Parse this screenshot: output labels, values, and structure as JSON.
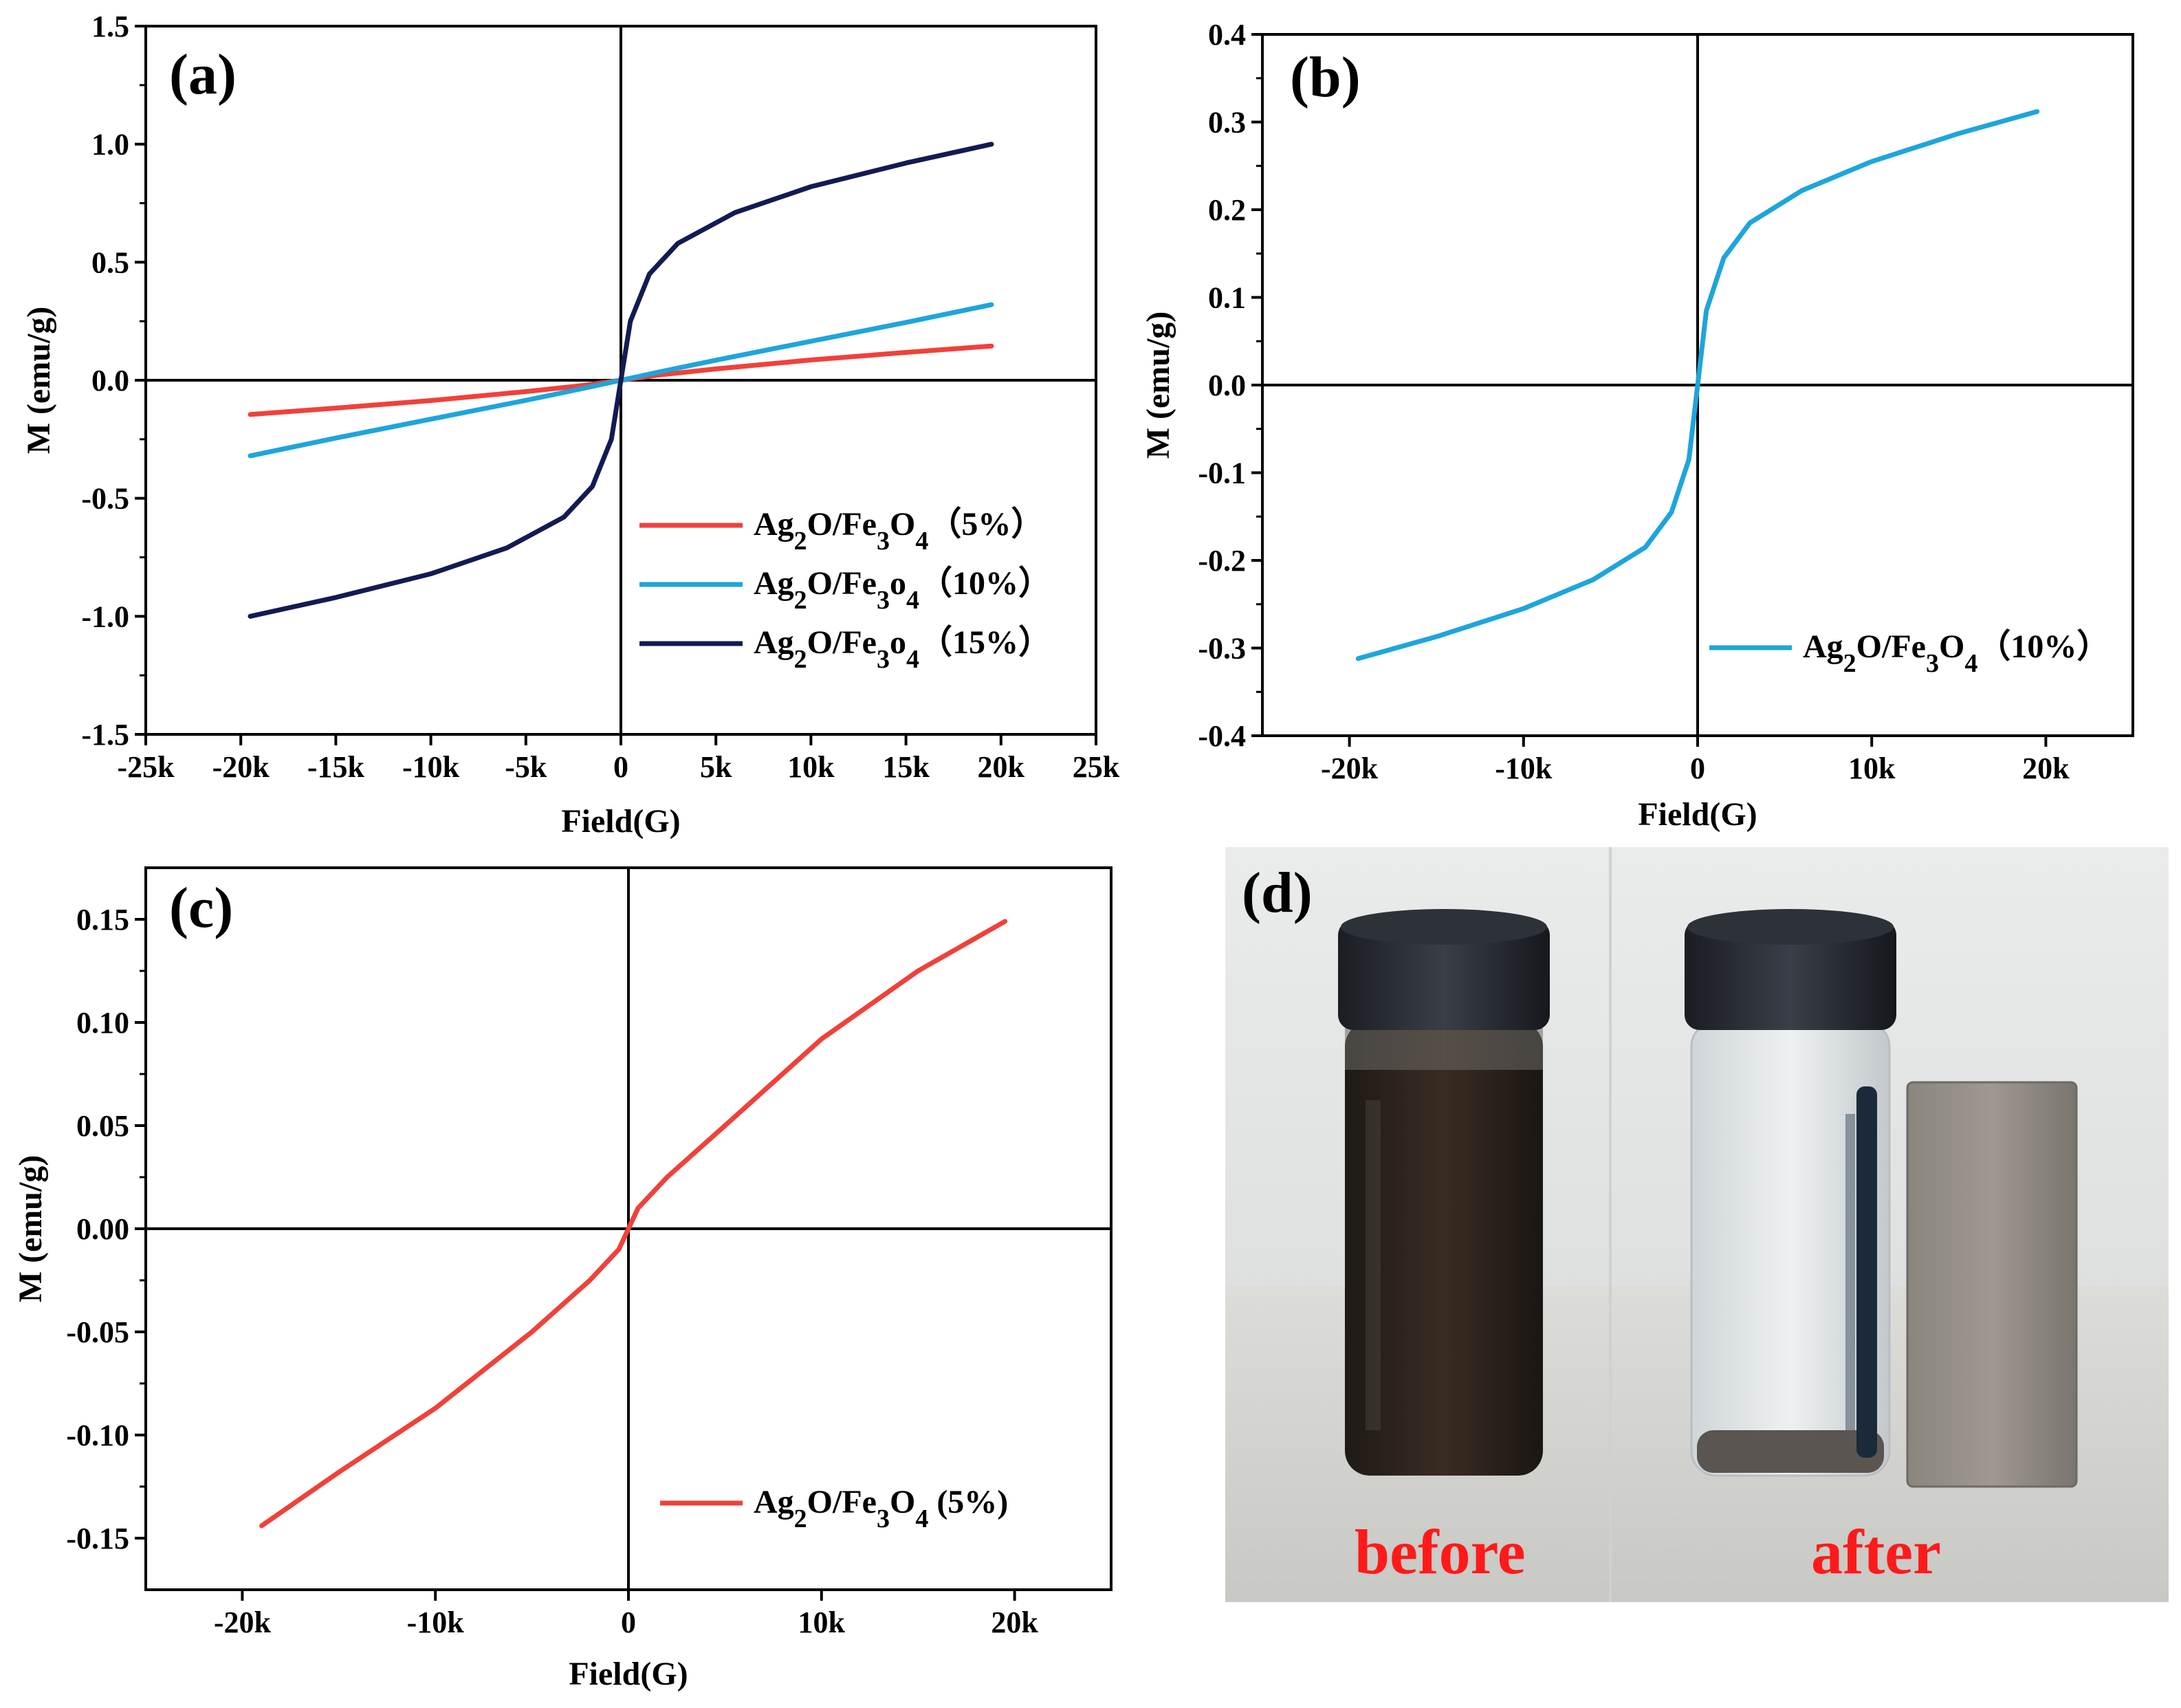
{
  "chart_data": [
    {
      "id": "a",
      "type": "line",
      "panel_label": "(a)",
      "xlabel": "Field(G)",
      "ylabel": "M (emu/g)",
      "xlim": [
        -25000,
        25000
      ],
      "ylim": [
        -1.5,
        1.5
      ],
      "x_ticks": [
        -25000,
        -20000,
        -15000,
        -10000,
        -5000,
        0,
        5000,
        10000,
        15000,
        20000,
        25000
      ],
      "x_tick_labels": [
        "-25k",
        "-20k",
        "-15k",
        "-10k",
        "-5k",
        "0",
        "5k",
        "10k",
        "15k",
        "20k",
        "25k"
      ],
      "y_ticks": [
        -1.5,
        -1.0,
        -0.5,
        0.0,
        0.5,
        1.0,
        1.5
      ],
      "y_tick_labels": [
        "-1.5",
        "-1.0",
        "-0.5",
        "0.0",
        "0.5",
        "1.0",
        "1.5"
      ],
      "legend_position": "bottom-right",
      "series": [
        {
          "name_parts": [
            "Ag",
            "2",
            "O/Fe",
            "3",
            "O",
            "4",
            "（5%）"
          ],
          "color": "#f0413a",
          "x": [
            -19500,
            -15000,
            -10000,
            -5000,
            -2000,
            0,
            2000,
            5000,
            10000,
            15000,
            19500
          ],
          "y": [
            -0.145,
            -0.118,
            -0.086,
            -0.048,
            -0.022,
            0.0,
            0.022,
            0.048,
            0.086,
            0.118,
            0.145
          ]
        },
        {
          "name_parts": [
            "Ag",
            "2",
            "O/Fe",
            "3",
            "o",
            "4",
            "（10%）"
          ],
          "color": "#1ea5dc",
          "x": [
            -19500,
            -15000,
            -10000,
            -5000,
            -2000,
            0,
            2000,
            5000,
            10000,
            15000,
            19500
          ],
          "y": [
            -0.32,
            -0.245,
            -0.165,
            -0.085,
            -0.035,
            0.0,
            0.035,
            0.085,
            0.165,
            0.245,
            0.32
          ]
        },
        {
          "name_parts": [
            "Ag",
            "2",
            "O/Fe",
            "3",
            "o",
            "4",
            "（15%）"
          ],
          "color": "#141a52",
          "x": [
            -19500,
            -15000,
            -10000,
            -6000,
            -3000,
            -1500,
            -500,
            0,
            500,
            1500,
            3000,
            6000,
            10000,
            15000,
            19500
          ],
          "y": [
            -1.0,
            -0.92,
            -0.82,
            -0.71,
            -0.58,
            -0.45,
            -0.25,
            0.0,
            0.25,
            0.45,
            0.58,
            0.71,
            0.82,
            0.92,
            1.0
          ]
        }
      ]
    },
    {
      "id": "b",
      "type": "line",
      "panel_label": "(b)",
      "xlabel": "Field(G)",
      "ylabel": "M (emu/g)",
      "xlim": [
        -25000,
        25000
      ],
      "ylim": [
        -0.4,
        0.4
      ],
      "x_ticks": [
        -20000,
        -10000,
        0,
        10000,
        20000
      ],
      "x_tick_labels": [
        "-20k",
        "-10k",
        "0",
        "10k",
        "20k"
      ],
      "y_ticks": [
        -0.4,
        -0.3,
        -0.2,
        -0.1,
        0.0,
        0.1,
        0.2,
        0.3,
        0.4
      ],
      "y_tick_labels": [
        "-0.4",
        "-0.3",
        "-0.2",
        "-0.1",
        "0.0",
        "0.1",
        "0.2",
        "0.3",
        "0.4"
      ],
      "legend_position": "bottom-right",
      "series": [
        {
          "name_parts": [
            "Ag",
            "2",
            "O/Fe",
            "3",
            "O",
            "4",
            "（10%）"
          ],
          "color": "#1ea5dc",
          "x": [
            -19500,
            -15000,
            -10000,
            -6000,
            -3000,
            -1500,
            -500,
            0,
            500,
            1500,
            3000,
            6000,
            10000,
            15000,
            19500
          ],
          "y": [
            -0.312,
            -0.287,
            -0.255,
            -0.222,
            -0.185,
            -0.145,
            -0.085,
            0.0,
            0.085,
            0.145,
            0.185,
            0.222,
            0.255,
            0.287,
            0.312
          ]
        }
      ]
    },
    {
      "id": "c",
      "type": "line",
      "panel_label": "(c)",
      "xlabel": "Field(G)",
      "ylabel": "M (emu/g)",
      "xlim": [
        -25000,
        25000
      ],
      "ylim": [
        -0.175,
        0.175
      ],
      "x_ticks": [
        -20000,
        -10000,
        0,
        10000,
        20000
      ],
      "x_tick_labels": [
        "-20k",
        "-10k",
        "0",
        "10k",
        "20k"
      ],
      "y_ticks": [
        -0.15,
        -0.1,
        -0.05,
        0.0,
        0.05,
        0.1,
        0.15
      ],
      "y_tick_labels": [
        "-0.15",
        "-0.10",
        "-0.05",
        "0.00",
        "0.05",
        "0.10",
        "0.15"
      ],
      "legend_position": "bottom-right",
      "series": [
        {
          "name_parts": [
            "Ag",
            "2",
            "O/Fe",
            "3",
            "O",
            "4",
            " (5%)"
          ],
          "color": "#f0413a",
          "x": [
            -19000,
            -15000,
            -10000,
            -5000,
            -2000,
            -500,
            0,
            500,
            2000,
            5000,
            10000,
            15000,
            19500
          ],
          "y": [
            -0.144,
            -0.118,
            -0.087,
            -0.05,
            -0.025,
            -0.01,
            0.0,
            0.01,
            0.025,
            0.05,
            0.092,
            0.125,
            0.149
          ]
        }
      ]
    }
  ],
  "photo": {
    "panel_label": "(d)",
    "left_caption": "before",
    "right_caption": "after",
    "caption_color": "#ff1a1a"
  }
}
